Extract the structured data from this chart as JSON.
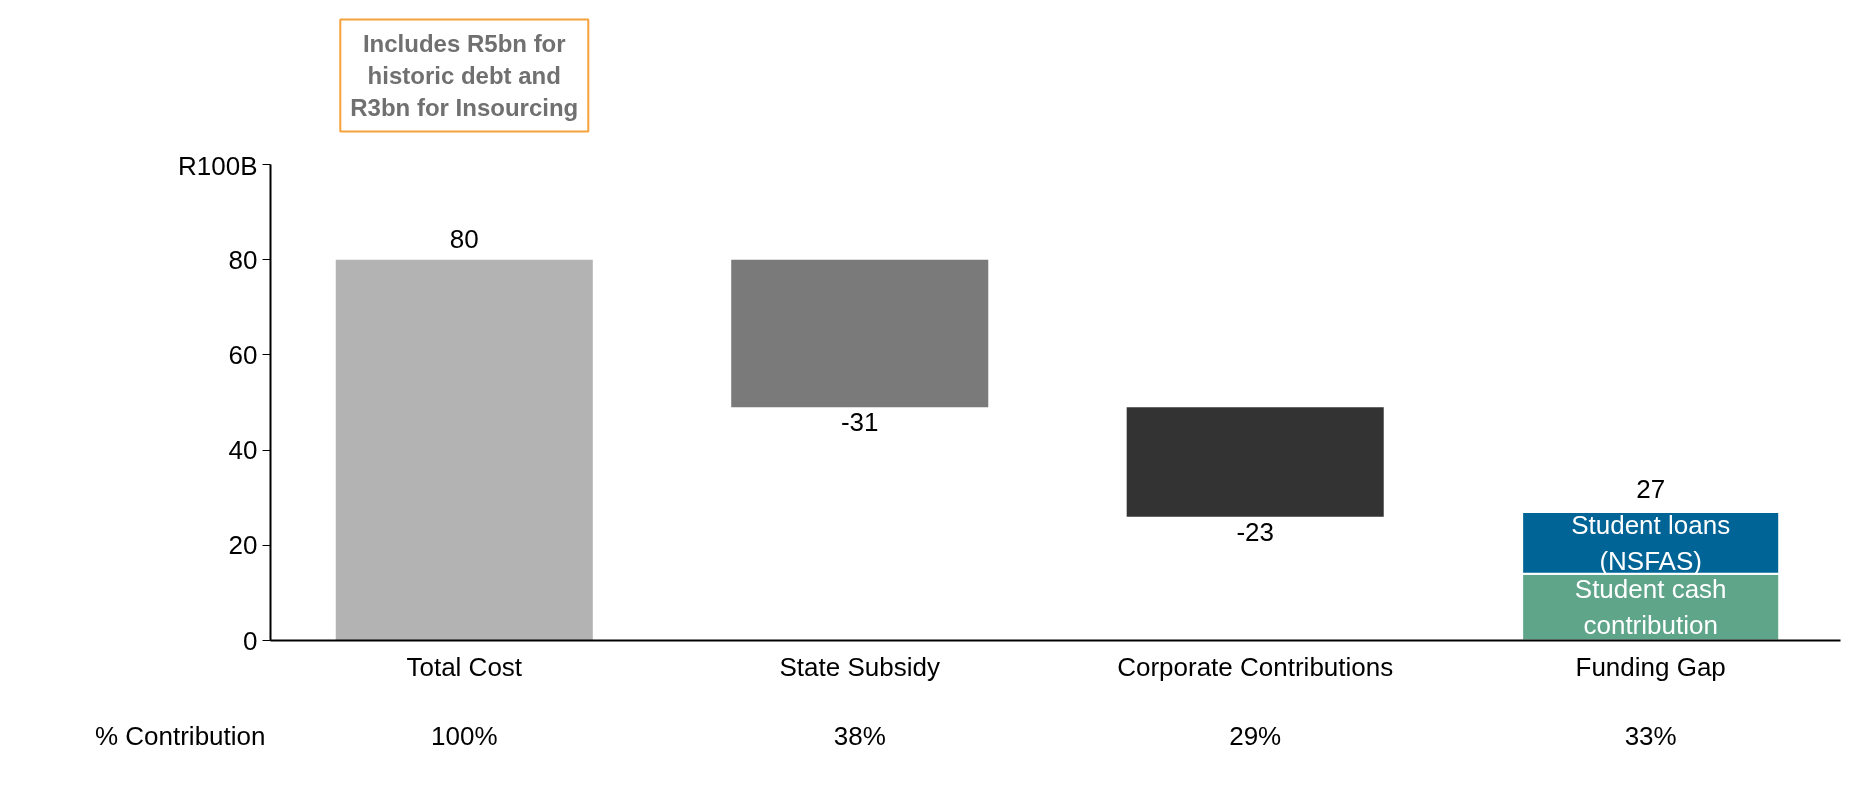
{
  "chart_data": {
    "type": "bar",
    "categories": [
      "Total Cost",
      "State Subsidy",
      "Corporate Contributions",
      "Funding Gap"
    ],
    "series": [
      {
        "colors": [
          "#b3b3b3",
          "#7a7a7a",
          "#333333",
          null
        ],
        "values": [
          80,
          -31,
          -23,
          null
        ],
        "base": [
          0,
          80,
          49,
          null
        ],
        "value_labels": [
          "80",
          "-31",
          "-23",
          null
        ]
      },
      {
        "name": "Student cash contribution",
        "color": "#5fa58a",
        "values": [
          null,
          null,
          null,
          14
        ],
        "base": [
          null,
          null,
          null,
          0
        ]
      },
      {
        "name": "Student loans (NSFAS)",
        "color": "#006496",
        "values": [
          null,
          null,
          null,
          13
        ],
        "base": [
          null,
          null,
          null,
          14
        ]
      }
    ],
    "totals": [
      null,
      null,
      null,
      "27"
    ],
    "ylim": [
      0,
      100
    ],
    "yticks": [
      0,
      20,
      40,
      60,
      80,
      {
        "value": 100,
        "label": "R100B"
      }
    ],
    "grid": false,
    "annotations": [
      "Includes R5bn for historic debt and R3bn for Insourcing",
      "% Contribution",
      "100%",
      "38%",
      "29%",
      "33%"
    ]
  }
}
